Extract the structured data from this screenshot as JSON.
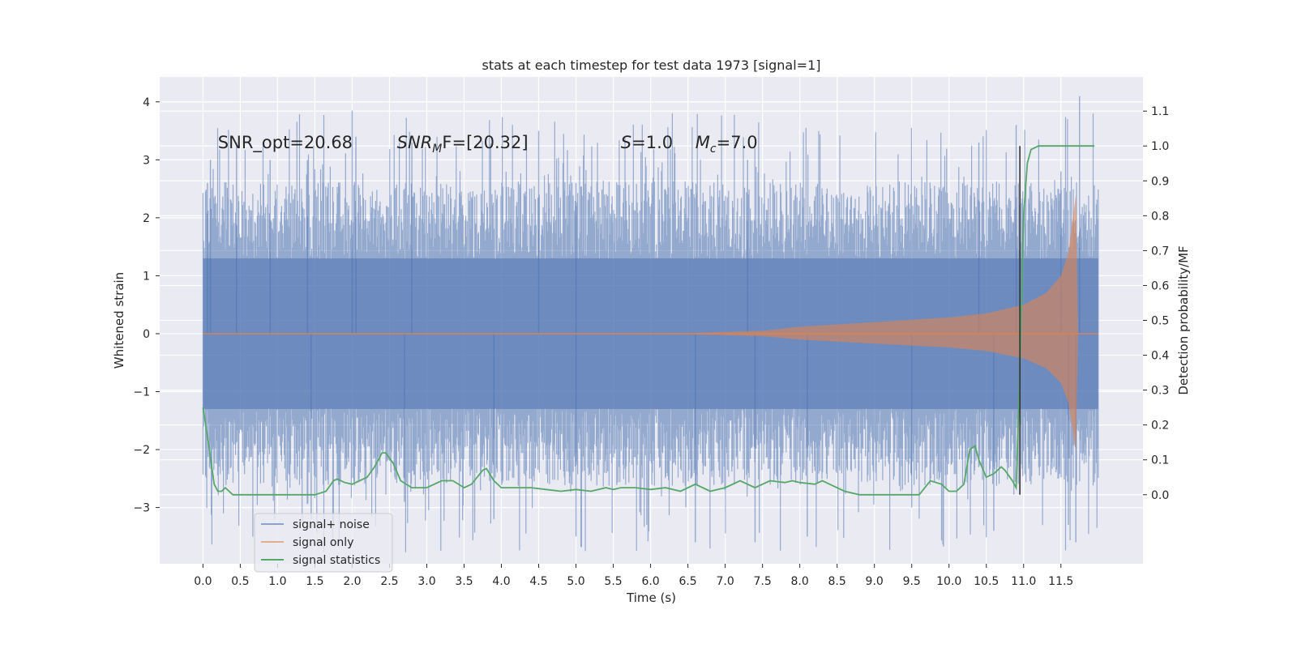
{
  "chart_data": {
    "type": "line",
    "title": "stats at each timestep for test data 1973 [signal=1]",
    "xlabel": "Time (s)",
    "ylabel": "Whitened strain",
    "ylabel_right": "Detection probability/MF",
    "xlim": [
      -0.58,
      12.6
    ],
    "ylim": [
      -3.97,
      4.43
    ],
    "ylim_right": [
      -0.198,
      1.198
    ],
    "x_ticks": [
      0.0,
      0.5,
      1.0,
      1.5,
      2.0,
      2.5,
      3.0,
      3.5,
      4.0,
      4.5,
      5.0,
      5.5,
      6.0,
      6.5,
      7.0,
      7.5,
      8.0,
      8.5,
      9.0,
      9.5,
      10.0,
      10.5,
      11.0,
      11.5
    ],
    "x_tick_labels": [
      "0.0",
      "0.5",
      "1.0",
      "1.5",
      "2.0",
      "2.5",
      "3.0",
      "3.5",
      "4.0",
      "4.5",
      "5.0",
      "5.5",
      "6.0",
      "6.5",
      "7.0",
      "7.5",
      "8.0",
      "8.5",
      "9.0",
      "9.5",
      "10.0",
      "10.5",
      "11.0",
      "11.5"
    ],
    "y_ticks": [
      -3,
      -2,
      -1,
      0,
      1,
      2,
      3,
      4
    ],
    "y_tick_labels": [
      "−3",
      "−2",
      "−1",
      "0",
      "1",
      "2",
      "3",
      "4"
    ],
    "y_right_ticks": [
      0.0,
      0.1,
      0.2,
      0.3,
      0.4,
      0.5,
      0.6,
      0.7,
      0.8,
      0.9,
      1.0,
      1.1
    ],
    "y_right_tick_labels": [
      "0.0",
      "0.1",
      "0.2",
      "0.3",
      "0.4",
      "0.5",
      "0.6",
      "0.7",
      "0.8",
      "0.9",
      "1.0",
      "1.1"
    ],
    "grid": true,
    "legend_position": "lower-left",
    "background_color": "#EAEAF2",
    "annotations": [
      {
        "text": "SNR_opt=20.68",
        "x": 0.2,
        "y": 3.3
      },
      {
        "text": "SNR",
        "sub": "M",
        "rest": "F=[20.32]",
        "italic": true,
        "x": 2.6,
        "y": 3.3
      },
      {
        "text": "S",
        "rest": "=1.0",
        "italic": true,
        "x": 5.6,
        "y": 3.3
      },
      {
        "text": "M",
        "sub": "c",
        "rest": "=7.0",
        "italic": true,
        "x": 6.6,
        "y": 3.3
      }
    ],
    "threshold_line": {
      "x": 10.95,
      "y_right_range": [
        0.0,
        1.0
      ],
      "color": "#333333"
    },
    "series": [
      {
        "name": "signal+ noise",
        "color": "#4C72B0",
        "opacity": 0.55,
        "x_range": [
          0.0,
          12.0
        ],
        "envelope": {
          "typical_abs": 1.5,
          "peak_max": 4.1,
          "peak_min": -3.8
        },
        "spikes": [
          {
            "x": 0.06,
            "y": 2.6
          },
          {
            "x": 0.1,
            "y": 3.0
          },
          {
            "x": 0.45,
            "y": 3.3
          },
          {
            "x": 0.9,
            "y": 3.0
          },
          {
            "x": 1.4,
            "y": 3.0
          },
          {
            "x": 2.0,
            "y": 3.85
          },
          {
            "x": 2.05,
            "y": 3.4
          },
          {
            "x": 2.8,
            "y": 3.3
          },
          {
            "x": 4.5,
            "y": 3.5
          },
          {
            "x": 5.0,
            "y": 2.6
          },
          {
            "x": 7.3,
            "y": 3.0
          },
          {
            "x": 10.4,
            "y": 3.3
          },
          {
            "x": 10.9,
            "y": 3.6
          },
          {
            "x": 11.75,
            "y": 4.1
          },
          {
            "x": 11.5,
            "y": 2.8
          },
          {
            "x": 1.45,
            "y": -3.2
          },
          {
            "x": 3.9,
            "y": -3.2
          },
          {
            "x": 5.0,
            "y": -3.5
          },
          {
            "x": 6.6,
            "y": -3.6
          },
          {
            "x": 7.4,
            "y": -3.6
          },
          {
            "x": 8.1,
            "y": -3.5
          },
          {
            "x": 9.5,
            "y": -3.0
          },
          {
            "x": 10.6,
            "y": -3.4
          },
          {
            "x": 11.7,
            "y": -3.6
          },
          {
            "x": 11.6,
            "y": -3.3
          },
          {
            "x": 2.7,
            "y": -2.9
          }
        ]
      },
      {
        "name": "signal only",
        "color": "#DD8452",
        "opacity": 0.6,
        "x_range": [
          0.0,
          12.0
        ],
        "envelope_points": [
          {
            "x": 0.0,
            "y": 0.0
          },
          {
            "x": 6.5,
            "y": 0.01
          },
          {
            "x": 7.5,
            "y": 0.05
          },
          {
            "x": 8.0,
            "y": 0.12
          },
          {
            "x": 9.0,
            "y": 0.2
          },
          {
            "x": 10.0,
            "y": 0.28
          },
          {
            "x": 10.5,
            "y": 0.35
          },
          {
            "x": 11.0,
            "y": 0.5
          },
          {
            "x": 11.3,
            "y": 0.7
          },
          {
            "x": 11.5,
            "y": 1.0
          },
          {
            "x": 11.6,
            "y": 1.4
          },
          {
            "x": 11.7,
            "y": 2.4
          },
          {
            "x": 11.73,
            "y": 0.0
          },
          {
            "x": 12.0,
            "y": 0.0
          }
        ]
      },
      {
        "name": "signal statistics",
        "color": "#55A868",
        "axis": "right",
        "x": [
          0.0,
          0.08,
          0.15,
          0.2,
          0.25,
          0.3,
          0.4,
          0.5,
          0.6,
          0.8,
          1.0,
          1.2,
          1.3,
          1.5,
          1.65,
          1.75,
          1.8,
          1.9,
          2.0,
          2.1,
          2.2,
          2.3,
          2.4,
          2.45,
          2.55,
          2.65,
          2.8,
          3.0,
          3.2,
          3.35,
          3.5,
          3.6,
          3.75,
          3.8,
          3.9,
          4.0,
          4.2,
          4.4,
          4.6,
          4.8,
          5.0,
          5.2,
          5.4,
          5.5,
          5.6,
          5.8,
          6.0,
          6.2,
          6.4,
          6.6,
          6.8,
          7.0,
          7.2,
          7.4,
          7.6,
          7.8,
          7.9,
          8.0,
          8.2,
          8.3,
          8.4,
          8.6,
          8.8,
          9.0,
          9.2,
          9.4,
          9.6,
          9.75,
          9.9,
          10.0,
          10.1,
          10.2,
          10.28,
          10.35,
          10.4,
          10.5,
          10.6,
          10.7,
          10.75,
          10.85,
          10.9,
          10.95,
          11.0,
          11.05,
          11.1,
          11.2,
          11.5,
          11.8,
          11.95
        ],
        "y": [
          0.25,
          0.14,
          0.03,
          0.01,
          0.01,
          0.02,
          0.0,
          0.0,
          0.0,
          -0.0,
          -0.0,
          0.0,
          0.0,
          0.0,
          0.01,
          0.04,
          0.045,
          0.035,
          0.03,
          0.04,
          0.05,
          0.08,
          0.12,
          0.12,
          0.09,
          0.04,
          0.02,
          0.02,
          0.04,
          0.04,
          0.02,
          0.03,
          0.07,
          0.075,
          0.04,
          0.02,
          0.02,
          0.02,
          0.015,
          0.01,
          0.015,
          0.01,
          0.02,
          0.015,
          0.02,
          0.02,
          0.015,
          0.02,
          0.01,
          0.03,
          0.01,
          0.02,
          0.04,
          0.02,
          0.04,
          0.035,
          0.04,
          0.035,
          0.03,
          0.04,
          0.03,
          0.01,
          0.0,
          0.0,
          0.0,
          0.0,
          0.0,
          0.04,
          0.03,
          0.01,
          0.01,
          0.03,
          0.13,
          0.14,
          0.1,
          0.05,
          0.06,
          0.08,
          0.07,
          0.04,
          0.02,
          0.35,
          0.8,
          0.95,
          0.99,
          1.0,
          1.0,
          1.0,
          1.0
        ]
      }
    ]
  },
  "legend": {
    "items": [
      {
        "label": "signal+ noise",
        "color": "#4C72B0"
      },
      {
        "label": "signal only",
        "color": "#DD8452"
      },
      {
        "label": "signal statistics",
        "color": "#55A868"
      }
    ]
  }
}
